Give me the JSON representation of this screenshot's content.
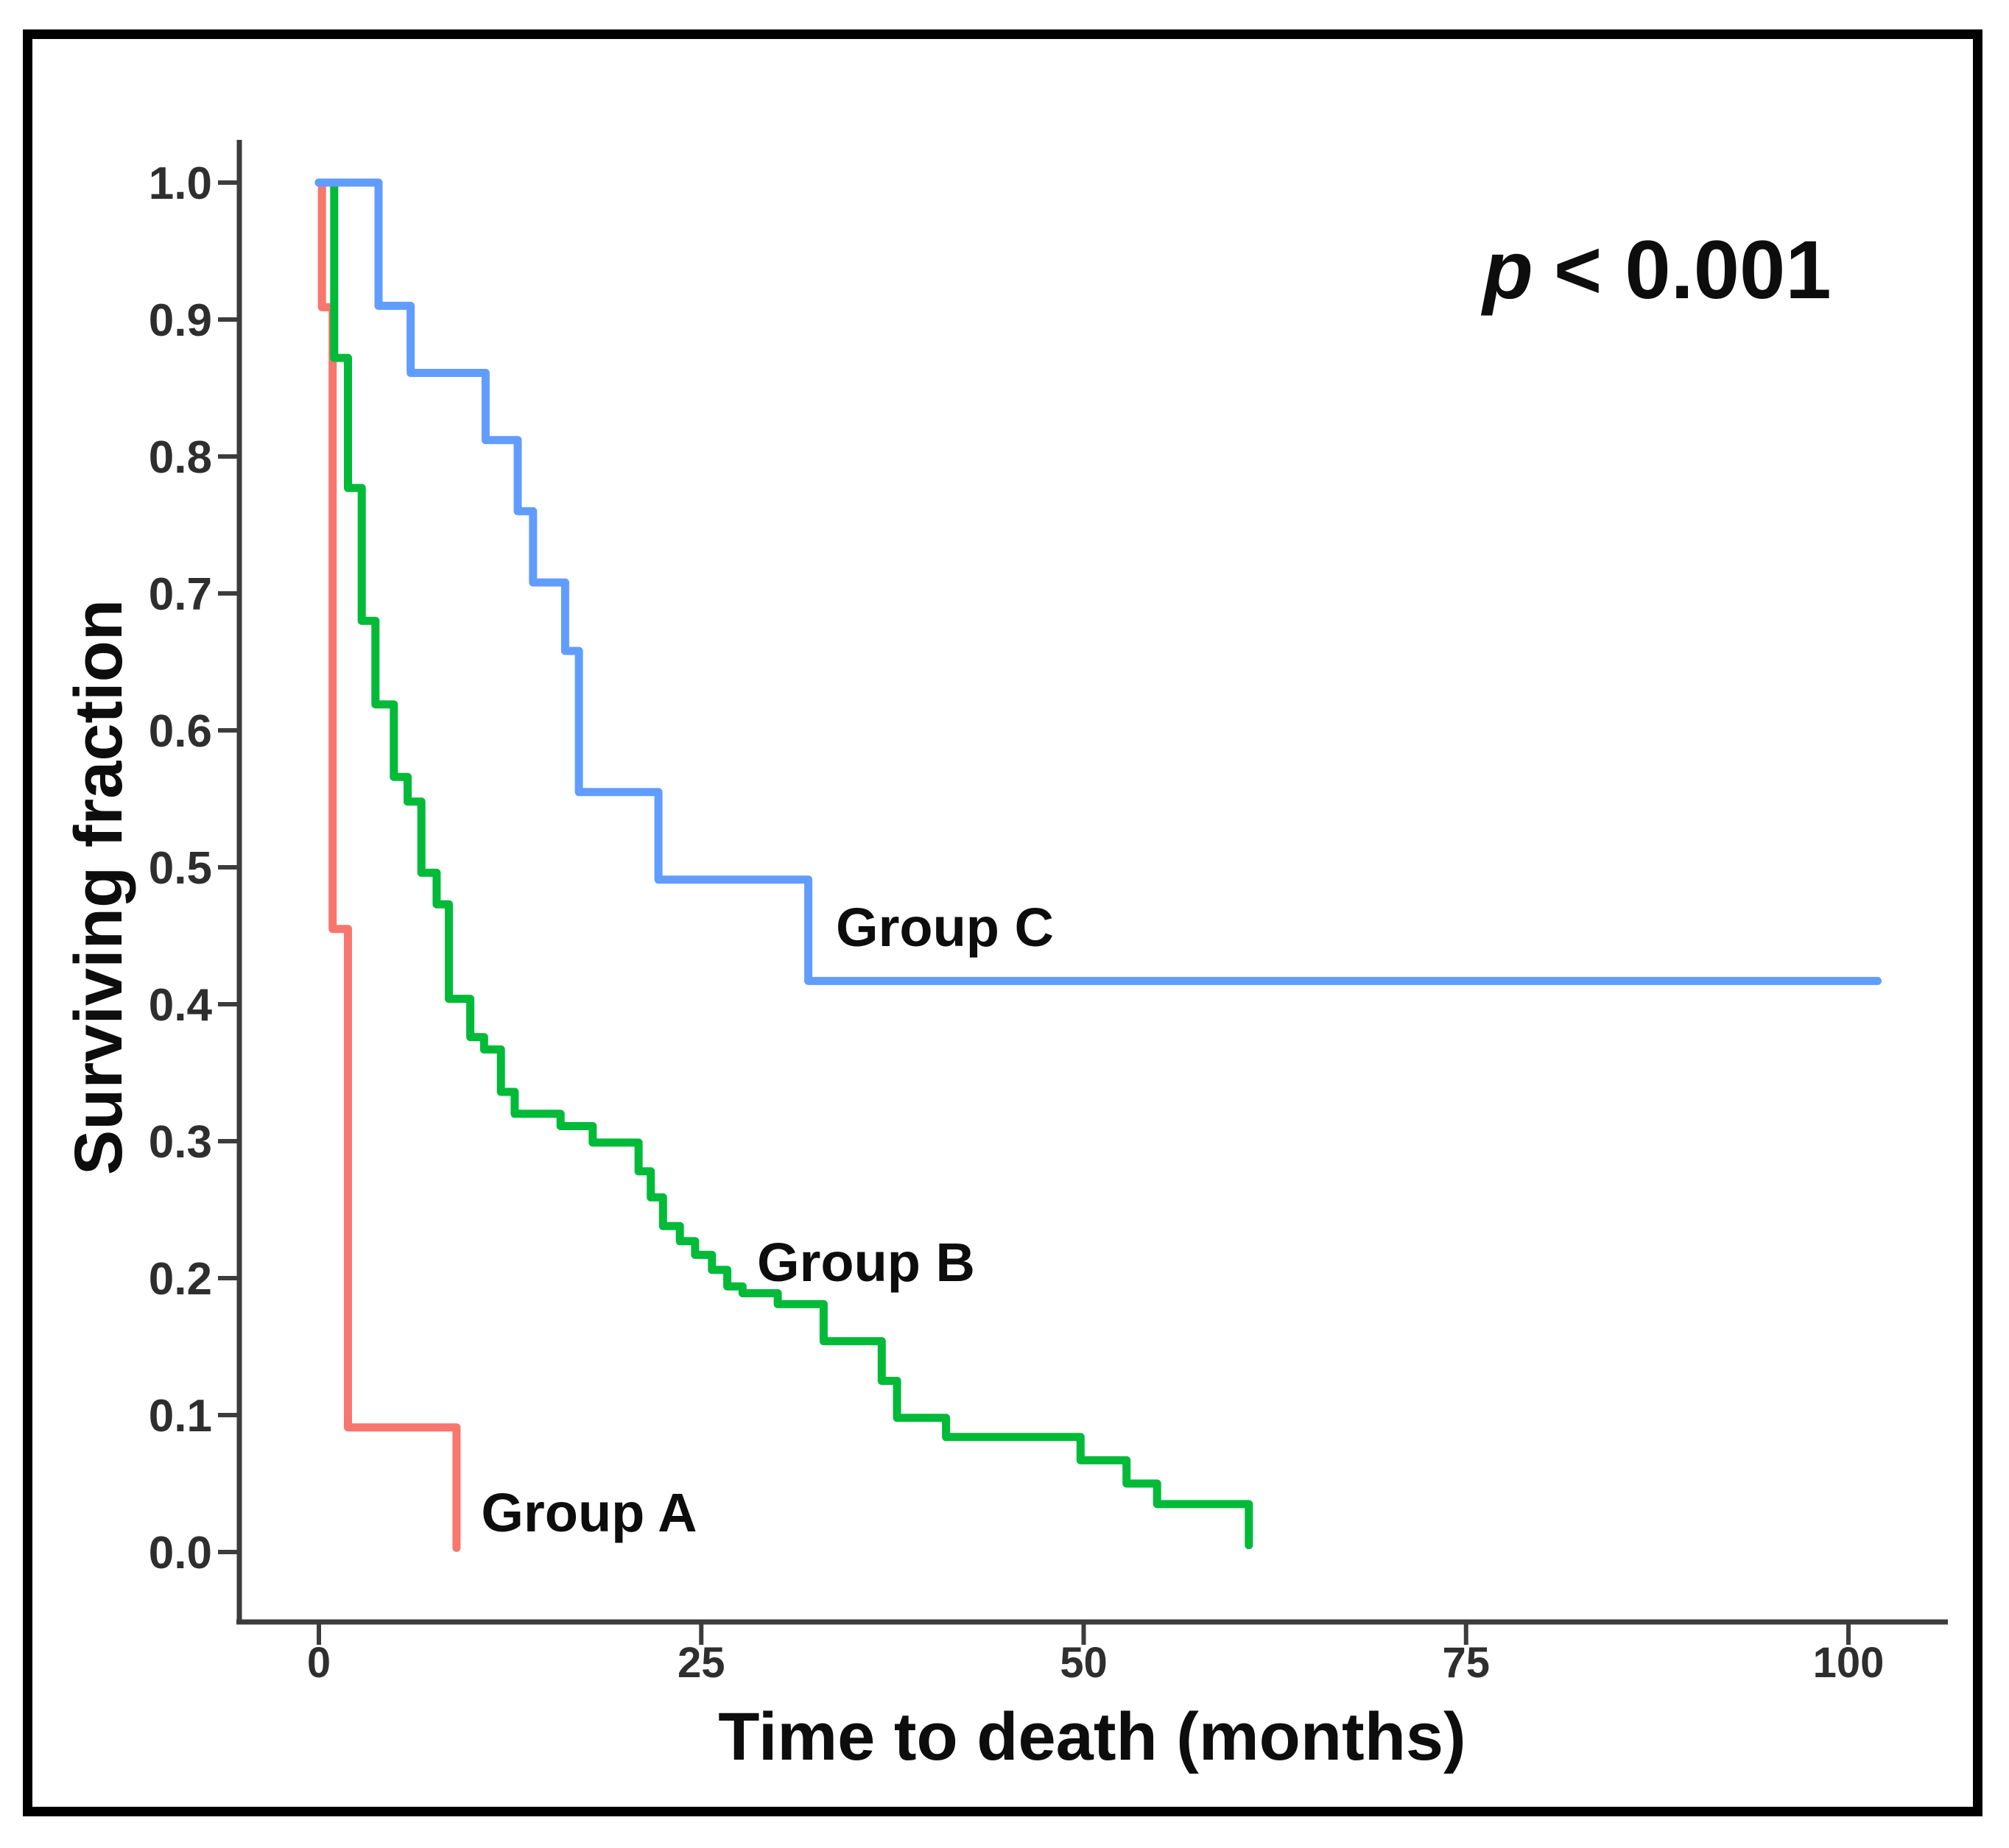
{
  "annotation": {
    "variable": "p",
    "text": "< 0.001"
  },
  "chart_data": {
    "type": "line",
    "subtype": "kaplan-meier-step",
    "title": "",
    "xlabel": "Time to death (months)",
    "ylabel": "Surviving fraction",
    "x_ticks": [
      0,
      25,
      50,
      75,
      100
    ],
    "y_ticks": [
      "0.0",
      "0.1",
      "0.2",
      "0.3",
      "0.4",
      "0.5",
      "0.6",
      "0.7",
      "0.8",
      "0.9",
      "1.0"
    ],
    "xlim": [
      0,
      102
    ],
    "ylim": [
      0,
      1
    ],
    "grid": false,
    "legend_position": "inline-labels",
    "axis_color": "#3c3c3c",
    "series": [
      {
        "name": "Group A",
        "color": "#F8766D",
        "steps": [
          [
            0,
            1.0
          ],
          [
            0.2,
            0.909
          ],
          [
            0.9,
            0.455
          ],
          [
            1.9,
            0.091
          ],
          [
            9.0,
            0.003
          ]
        ]
      },
      {
        "name": "Group B",
        "color": "#00BA38",
        "steps": [
          [
            0,
            1.0
          ],
          [
            1.0,
            0.872
          ],
          [
            1.9,
            0.777
          ],
          [
            2.8,
            0.68
          ],
          [
            3.7,
            0.619
          ],
          [
            4.9,
            0.566
          ],
          [
            5.8,
            0.548
          ],
          [
            6.7,
            0.496
          ],
          [
            7.7,
            0.473
          ],
          [
            8.5,
            0.404
          ],
          [
            9.9,
            0.376
          ],
          [
            10.8,
            0.367
          ],
          [
            11.9,
            0.336
          ],
          [
            12.8,
            0.32
          ],
          [
            15.8,
            0.311
          ],
          [
            17.9,
            0.299
          ],
          [
            20.9,
            0.278
          ],
          [
            21.7,
            0.259
          ],
          [
            22.5,
            0.238
          ],
          [
            23.6,
            0.227
          ],
          [
            24.6,
            0.217
          ],
          [
            25.7,
            0.206
          ],
          [
            26.7,
            0.194
          ],
          [
            27.7,
            0.189
          ],
          [
            30.0,
            0.181
          ],
          [
            33.0,
            0.154
          ],
          [
            36.8,
            0.125
          ],
          [
            37.8,
            0.098
          ],
          [
            41.0,
            0.084
          ],
          [
            49.8,
            0.067
          ],
          [
            52.8,
            0.05
          ],
          [
            54.8,
            0.035
          ],
          [
            60.8,
            0.005
          ]
        ]
      },
      {
        "name": "Group C",
        "color": "#619CFF",
        "steps": [
          [
            0,
            1.0
          ],
          [
            3.9,
            0.91
          ],
          [
            6.0,
            0.861
          ],
          [
            10.9,
            0.812
          ],
          [
            13.0,
            0.76
          ],
          [
            14.0,
            0.708
          ],
          [
            16.1,
            0.658
          ],
          [
            17.0,
            0.555
          ],
          [
            22.2,
            0.491
          ],
          [
            32.0,
            0.417
          ],
          [
            101.9,
            0.417
          ]
        ]
      }
    ]
  }
}
